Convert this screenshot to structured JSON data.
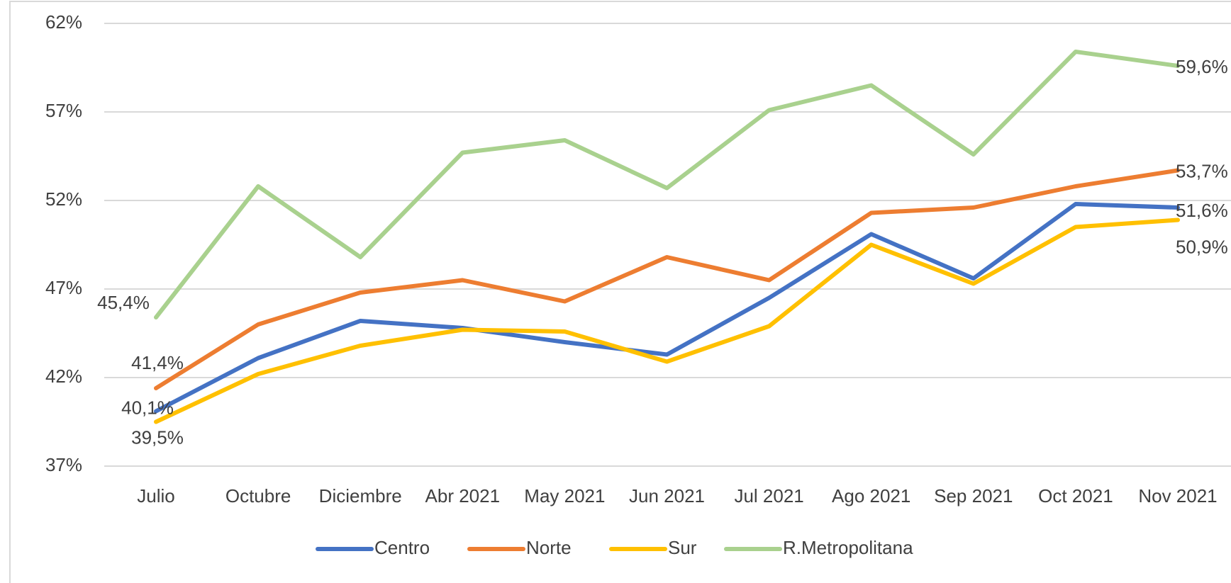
{
  "chart_data": {
    "type": "line",
    "categories": [
      "Julio",
      "Octubre",
      "Diciembre",
      "Abr 2021",
      "May 2021",
      "Jun 2021",
      "Jul 2021",
      "Ago 2021",
      "Sep 2021",
      "Oct 2021",
      "Nov 2021"
    ],
    "ylim": [
      37,
      62
    ],
    "yticks": [
      {
        "value": 37,
        "label": "37%"
      },
      {
        "value": 42,
        "label": "42%"
      },
      {
        "value": 47,
        "label": "47%"
      },
      {
        "value": 52,
        "label": "52%"
      },
      {
        "value": 57,
        "label": "57%"
      },
      {
        "value": 62,
        "label": "62%"
      }
    ],
    "grid": true,
    "legend": "bottom",
    "series": [
      {
        "name": "Centro",
        "color": "#4472c4",
        "values": [
          40.1,
          43.1,
          45.2,
          44.8,
          44.0,
          43.3,
          46.5,
          50.1,
          47.6,
          51.8,
          51.6
        ],
        "value_labels": [
          "40,1%",
          null,
          null,
          null,
          null,
          null,
          null,
          null,
          null,
          null,
          "51,6%"
        ]
      },
      {
        "name": "Norte",
        "color": "#ed7d31",
        "values": [
          41.4,
          45.0,
          46.8,
          47.5,
          46.3,
          48.8,
          47.5,
          51.3,
          51.6,
          52.8,
          53.7
        ],
        "value_labels": [
          "41,4%",
          null,
          null,
          null,
          null,
          null,
          null,
          null,
          null,
          null,
          "53,7%"
        ]
      },
      {
        "name": "Sur",
        "color": "#ffc000",
        "values": [
          39.5,
          42.2,
          43.8,
          44.7,
          44.6,
          42.9,
          44.9,
          49.5,
          47.3,
          50.5,
          50.9
        ],
        "value_labels": [
          "39,5%",
          null,
          null,
          null,
          null,
          null,
          null,
          null,
          null,
          null,
          "50,9%"
        ]
      },
      {
        "name": "R.Metropolitana",
        "color": "#a9d18e",
        "values": [
          45.4,
          52.8,
          48.8,
          54.7,
          55.4,
          52.7,
          57.1,
          58.5,
          54.6,
          60.4,
          59.6
        ],
        "value_labels": [
          "45,4%",
          null,
          null,
          null,
          null,
          null,
          null,
          null,
          null,
          null,
          "59,6%"
        ]
      }
    ]
  }
}
